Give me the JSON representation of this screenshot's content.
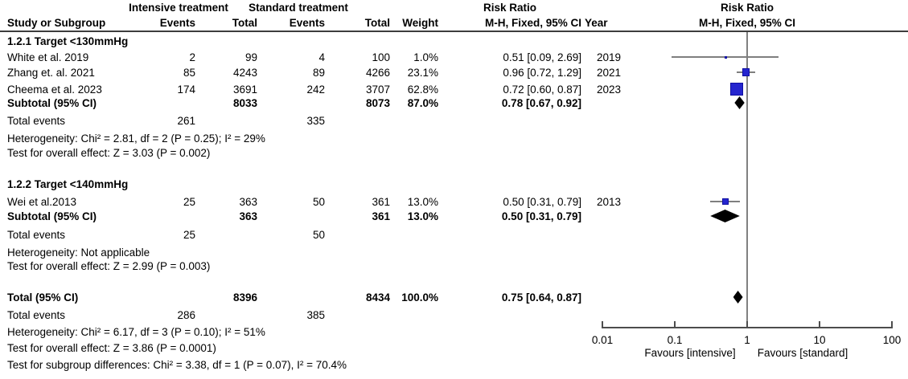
{
  "header": {
    "group_intensive": "Intensive treatment",
    "group_standard": "Standard treatment",
    "study": "Study or Subgroup",
    "events": "Events",
    "total": "Total",
    "weight": "Weight",
    "rr_title": "Risk Ratio",
    "rr_method": "M-H, Fixed, 95% CI",
    "year": "Year",
    "plot_title": "Risk Ratio",
    "plot_method": "M-H, Fixed, 95% CI"
  },
  "rows": [
    {
      "label": "1.2.1 Target <130mmHg"
    },
    {
      "label": "White et al. 2019",
      "e1": "2",
      "t1": "99",
      "e2": "4",
      "t2": "100",
      "w": "1.0%",
      "rr": "0.51 [0.09, 2.69]",
      "year": "2019"
    },
    {
      "label": "Zhang et. al. 2021",
      "e1": "85",
      "t1": "4243",
      "e2": "89",
      "t2": "4266",
      "w": "23.1%",
      "rr": "0.96 [0.72, 1.29]",
      "year": "2021"
    },
    {
      "label": "Cheema et al. 2023",
      "e1": "174",
      "t1": "3691",
      "e2": "242",
      "t2": "3707",
      "w": "62.8%",
      "rr": "0.72 [0.60, 0.87]",
      "year": "2023"
    },
    {
      "label": "Subtotal (95% CI)",
      "t1": "8033",
      "t2": "8073",
      "w": "87.0%",
      "rr": "0.78 [0.67, 0.92]"
    },
    {
      "label": "Total events",
      "e1": "261",
      "e2": "335"
    },
    {
      "label": "Heterogeneity: Chi² = 2.81, df = 2 (P = 0.25); I² = 29%"
    },
    {
      "label": "Test for overall effect: Z = 3.03 (P = 0.002)"
    },
    {
      "label": "1.2.2 Target <140mmHg"
    },
    {
      "label": "Wei et al.2013",
      "e1": "25",
      "t1": "363",
      "e2": "50",
      "t2": "361",
      "w": "13.0%",
      "rr": "0.50 [0.31, 0.79]",
      "year": "2013"
    },
    {
      "label": "Subtotal (95% CI)",
      "t1": "363",
      "t2": "361",
      "w": "13.0%",
      "rr": "0.50 [0.31, 0.79]"
    },
    {
      "label": "Total events",
      "e1": "25",
      "e2": "50"
    },
    {
      "label": "Heterogeneity: Not applicable"
    },
    {
      "label": "Test for overall effect: Z = 2.99 (P = 0.003)"
    },
    {
      "label": "Total (95% CI)",
      "t1": "8396",
      "t2": "8434",
      "w": "100.0%",
      "rr": "0.75 [0.64, 0.87]"
    },
    {
      "label": "Total events",
      "e1": "286",
      "e2": "385"
    },
    {
      "label": "Heterogeneity: Chi² = 6.17, df = 3 (P = 0.10); I² = 51%"
    },
    {
      "label": "Test for overall effect: Z = 3.86 (P = 0.0001)"
    },
    {
      "label": "Test for subgroup differences: Chi² = 3.38, df = 1 (P = 0.07), I² = 70.4%"
    }
  ],
  "chart_data": {
    "type": "forest",
    "effect_measure": "Risk Ratio (M-H, Fixed, 95% CI)",
    "x_scale": "log10",
    "ref_line": 1,
    "x_ticks": [
      0.01,
      0.1,
      1,
      10,
      100
    ],
    "favours_left": "Favours [intensive]",
    "favours_right": "Favours [standard]",
    "studies": [
      {
        "name": "White et al. 2019",
        "subgroup": "1.2.1 Target <130mmHg",
        "rr": 0.51,
        "ci_low": 0.09,
        "ci_high": 2.69,
        "weight_pct": 1.0,
        "year": 2019
      },
      {
        "name": "Zhang et. al. 2021",
        "subgroup": "1.2.1 Target <130mmHg",
        "rr": 0.96,
        "ci_low": 0.72,
        "ci_high": 1.29,
        "weight_pct": 23.1,
        "year": 2021
      },
      {
        "name": "Cheema et al. 2023",
        "subgroup": "1.2.1 Target <130mmHg",
        "rr": 0.72,
        "ci_low": 0.6,
        "ci_high": 0.87,
        "weight_pct": 62.8,
        "year": 2023
      },
      {
        "name": "Wei et al.2013",
        "subgroup": "1.2.2 Target <140mmHg",
        "rr": 0.5,
        "ci_low": 0.31,
        "ci_high": 0.79,
        "weight_pct": 13.0,
        "year": 2013
      }
    ],
    "summaries": [
      {
        "name": "Subtotal 1.2.1 (95% CI)",
        "rr": 0.78,
        "ci_low": 0.67,
        "ci_high": 0.92,
        "weight_pct": 87.0
      },
      {
        "name": "Subtotal 1.2.2 (95% CI)",
        "rr": 0.5,
        "ci_low": 0.31,
        "ci_high": 0.79,
        "weight_pct": 13.0
      },
      {
        "name": "Total (95% CI)",
        "rr": 0.75,
        "ci_low": 0.64,
        "ci_high": 0.87,
        "weight_pct": 100.0
      }
    ],
    "colors": {
      "square": "#2525cf",
      "square_border": "#0f0fa0",
      "diamond": "#000000",
      "ci_line": "#7f7f7f",
      "axis": "#4d4d4d"
    }
  }
}
